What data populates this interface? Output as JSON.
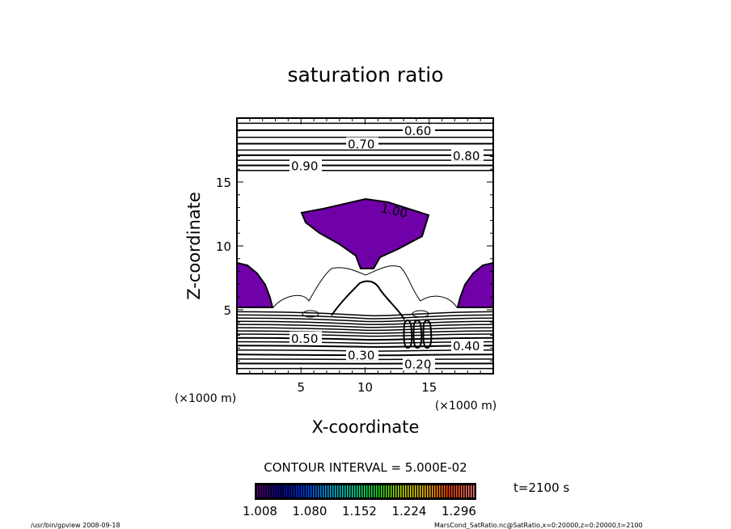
{
  "chart_data": {
    "type": "contour",
    "title": "saturation ratio",
    "xlabel": "X-coordinate",
    "ylabel": "Z-coordinate",
    "x_unit": "(×1000 m)",
    "y_unit": "(×1000 m)",
    "xlim": [
      0,
      20
    ],
    "ylim": [
      0,
      20
    ],
    "xticks": [
      5,
      10,
      15
    ],
    "yticks": [
      5,
      10,
      15
    ],
    "xtick_labels": [
      "5",
      "10",
      "15"
    ],
    "ytick_labels": [
      "5",
      "10",
      "15"
    ],
    "contour_interval_label": "CONTOUR INTERVAL = 5.000E-02",
    "contour_interval": 0.05,
    "upper_contours": [
      {
        "level": 0.55,
        "z": 19.6
      },
      {
        "level": 0.6,
        "z": 19.05,
        "label": "0.60"
      },
      {
        "level": 0.65,
        "z": 18.5
      },
      {
        "level": 0.7,
        "z": 18.0,
        "label": "0.70"
      },
      {
        "level": 0.75,
        "z": 17.5
      },
      {
        "level": 0.8,
        "z": 17.1,
        "label": "0.80"
      },
      {
        "level": 0.85,
        "z": 16.7
      },
      {
        "level": 0.9,
        "z": 16.3,
        "label": "0.90"
      },
      {
        "level": 0.95,
        "z": 15.9
      }
    ],
    "lower_contours": [
      {
        "level": 0.15,
        "z": 0.4
      },
      {
        "level": 0.2,
        "z": 0.8,
        "label": "0.20"
      },
      {
        "level": 0.25,
        "z": 1.15
      },
      {
        "level": 0.3,
        "z": 1.5,
        "label": "0.30"
      },
      {
        "level": 0.35,
        "z": 1.85
      },
      {
        "level": 0.4,
        "z": 2.2,
        "label": "0.40"
      },
      {
        "level": 0.45,
        "z": 2.5
      },
      {
        "level": 0.5,
        "z": 2.8,
        "label": "0.50"
      },
      {
        "level": 0.55,
        "z": 3.1
      },
      {
        "level": 0.6,
        "z": 3.35
      },
      {
        "level": 0.65,
        "z": 3.6
      },
      {
        "level": 0.7,
        "z": 3.85
      },
      {
        "level": 0.75,
        "z": 4.1
      },
      {
        "level": 0.8,
        "z": 4.35
      },
      {
        "level": 0.85,
        "z": 4.6
      },
      {
        "level": 0.9,
        "z": 4.85
      }
    ],
    "supersaturation_label": "1.00",
    "colorbar": {
      "tick_labels": [
        "1.008",
        "1.080",
        "1.152",
        "1.224",
        "1.296"
      ],
      "min": 1.008,
      "max": 1.33,
      "colors": [
        "#5a0080",
        "#0000a0",
        "#0040ff",
        "#00b0e0",
        "#00e0a0",
        "#20e020",
        "#c0e000",
        "#ffc000",
        "#ff4000",
        "#ff8080"
      ]
    },
    "fill_color": "#7000a8",
    "time_label": "t=2100 s"
  },
  "footer": {
    "left": "/usr/bin/gpview   2008-09-18",
    "right": "MarsCond_SatRatio.nc@SatRatio,x=0:20000,z=0:20000,t=2100"
  }
}
